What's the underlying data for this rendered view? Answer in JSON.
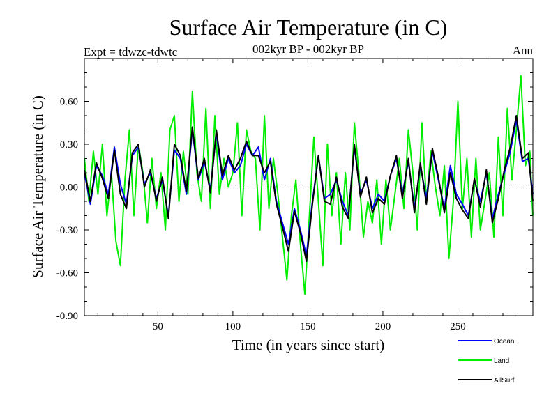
{
  "chart_data": {
    "type": "line",
    "title": "Surface Air Temperature (in C)",
    "subtitle": "002kyr BP - 002kyr BP",
    "left_header": "Expt = tdwzc-tdwtc",
    "right_header": "Ann",
    "xlabel": "Time (in years since start)",
    "ylabel": "Surface Air Temperature (in C)",
    "xlim": [
      1,
      300
    ],
    "ylim": [
      -0.9,
      0.9
    ],
    "xticks": [
      50,
      100,
      150,
      200,
      250
    ],
    "xtick_labels": [
      "50",
      "100",
      "150",
      "200",
      "250"
    ],
    "yticks": [
      -0.9,
      -0.6,
      -0.3,
      0.0,
      0.3,
      0.6
    ],
    "ytick_labels": [
      "-0.90",
      "-0.60",
      "-0.30",
      "0.00",
      "0.30",
      "0.60"
    ],
    "zero_line": "dashed",
    "legend_position": "below-right",
    "series": [
      {
        "name": "Ocean",
        "color": "#0000ff",
        "x": [
          1,
          5,
          9,
          13,
          17,
          21,
          25,
          29,
          33,
          37,
          41,
          45,
          49,
          53,
          57,
          61,
          65,
          69,
          73,
          77,
          81,
          85,
          89,
          93,
          97,
          101,
          105,
          109,
          113,
          117,
          121,
          125,
          129,
          133,
          137,
          141,
          145,
          149,
          153,
          157,
          161,
          165,
          169,
          173,
          177,
          181,
          185,
          189,
          193,
          197,
          201,
          205,
          209,
          213,
          217,
          221,
          225,
          229,
          233,
          237,
          241,
          245,
          249,
          253,
          257,
          261,
          265,
          269,
          273,
          277,
          281,
          285,
          289,
          293,
          297,
          300
        ],
        "y": [
          0.1,
          -0.12,
          0.15,
          0.08,
          -0.05,
          0.28,
          0.02,
          -0.12,
          0.22,
          0.28,
          0.02,
          0.1,
          -0.08,
          0.05,
          -0.2,
          0.26,
          0.2,
          -0.05,
          0.4,
          0.05,
          0.18,
          -0.02,
          0.38,
          0.05,
          0.2,
          0.1,
          0.15,
          0.3,
          0.22,
          0.28,
          0.05,
          0.2,
          -0.1,
          -0.25,
          -0.4,
          -0.15,
          -0.3,
          -0.48,
          -0.1,
          0.22,
          -0.08,
          -0.05,
          0.05,
          -0.1,
          -0.2,
          0.28,
          -0.05,
          0.05,
          -0.15,
          -0.05,
          -0.1,
          0.08,
          0.2,
          -0.05,
          0.18,
          -0.15,
          0.15,
          -0.08,
          0.25,
          0.05,
          -0.15,
          0.15,
          -0.05,
          -0.12,
          -0.2,
          0.05,
          -0.1,
          0.1,
          -0.22,
          -0.05,
          0.1,
          0.25,
          0.47,
          0.18,
          0.2,
          -0.05
        ]
      },
      {
        "name": "Land",
        "color": "#00ee00",
        "x": [
          1,
          4,
          7,
          10,
          13,
          16,
          19,
          22,
          25,
          28,
          31,
          34,
          37,
          40,
          43,
          46,
          49,
          52,
          55,
          58,
          61,
          64,
          67,
          70,
          73,
          76,
          79,
          82,
          85,
          88,
          91,
          94,
          97,
          100,
          103,
          106,
          109,
          112,
          115,
          118,
          121,
          124,
          127,
          130,
          133,
          136,
          139,
          142,
          145,
          148,
          151,
          154,
          157,
          160,
          163,
          166,
          169,
          172,
          175,
          178,
          181,
          184,
          187,
          190,
          193,
          196,
          199,
          202,
          205,
          208,
          211,
          214,
          217,
          220,
          223,
          226,
          229,
          232,
          235,
          238,
          241,
          244,
          247,
          250,
          253,
          256,
          259,
          262,
          265,
          268,
          271,
          274,
          277,
          280,
          283,
          286,
          289,
          292,
          295,
          298,
          300
        ],
        "y": [
          0.2,
          -0.1,
          0.25,
          -0.05,
          0.3,
          -0.2,
          0.1,
          -0.38,
          -0.55,
          0.05,
          0.4,
          -0.2,
          0.3,
          0.1,
          -0.25,
          0.2,
          -0.15,
          0.1,
          -0.3,
          0.4,
          0.5,
          -0.1,
          0.25,
          -0.05,
          0.67,
          0.1,
          -0.1,
          0.55,
          -0.15,
          0.5,
          -0.05,
          0.2,
          0.0,
          0.1,
          0.45,
          -0.2,
          0.4,
          0.25,
          0.2,
          -0.3,
          0.5,
          -0.15,
          0.2,
          -0.05,
          -0.35,
          -0.65,
          -0.2,
          0.05,
          -0.4,
          -0.75,
          -0.2,
          0.35,
          -0.1,
          -0.55,
          0.3,
          -0.2,
          0.1,
          -0.4,
          0.1,
          -0.3,
          0.45,
          0.1,
          -0.35,
          -0.1,
          -0.25,
          0.05,
          -0.4,
          0.05,
          -0.3,
          -0.05,
          0.2,
          -0.15,
          0.4,
          0.1,
          -0.3,
          0.45,
          -0.1,
          0.25,
          0.0,
          -0.2,
          0.15,
          -0.5,
          -0.1,
          0.6,
          -0.15,
          0.2,
          -0.35,
          0.2,
          -0.3,
          -0.1,
          0.1,
          -0.35,
          0.35,
          -0.2,
          0.55,
          0.05,
          0.4,
          0.78,
          0.15,
          0.25,
          -0.2
        ]
      },
      {
        "name": "AllSurf",
        "color": "#000000",
        "x": [
          1,
          5,
          9,
          13,
          17,
          21,
          25,
          29,
          33,
          37,
          41,
          45,
          49,
          53,
          57,
          61,
          65,
          69,
          73,
          77,
          81,
          85,
          89,
          93,
          97,
          101,
          105,
          109,
          113,
          117,
          121,
          125,
          129,
          133,
          137,
          141,
          145,
          149,
          153,
          157,
          161,
          165,
          169,
          173,
          177,
          181,
          185,
          189,
          193,
          197,
          201,
          205,
          209,
          213,
          217,
          221,
          225,
          229,
          233,
          237,
          241,
          245,
          249,
          253,
          257,
          261,
          265,
          269,
          273,
          277,
          281,
          285,
          289,
          293,
          297,
          300
        ],
        "y": [
          0.12,
          -0.1,
          0.17,
          0.06,
          -0.08,
          0.26,
          -0.05,
          -0.15,
          0.24,
          0.3,
          0.0,
          0.12,
          -0.1,
          0.07,
          -0.22,
          0.3,
          0.22,
          -0.03,
          0.42,
          0.06,
          0.2,
          -0.04,
          0.4,
          0.08,
          0.22,
          0.12,
          0.2,
          0.32,
          0.22,
          0.22,
          0.1,
          0.18,
          -0.12,
          -0.28,
          -0.45,
          -0.17,
          -0.32,
          -0.52,
          -0.12,
          0.22,
          -0.1,
          -0.12,
          0.07,
          -0.14,
          -0.22,
          0.3,
          -0.07,
          0.07,
          -0.18,
          -0.08,
          -0.12,
          0.08,
          0.22,
          -0.08,
          0.2,
          -0.18,
          0.17,
          -0.12,
          0.27,
          0.07,
          -0.18,
          0.1,
          -0.08,
          -0.16,
          -0.22,
          0.06,
          -0.14,
          0.12,
          -0.25,
          -0.08,
          0.12,
          0.28,
          0.5,
          0.2,
          0.24,
          -0.1
        ]
      }
    ]
  }
}
